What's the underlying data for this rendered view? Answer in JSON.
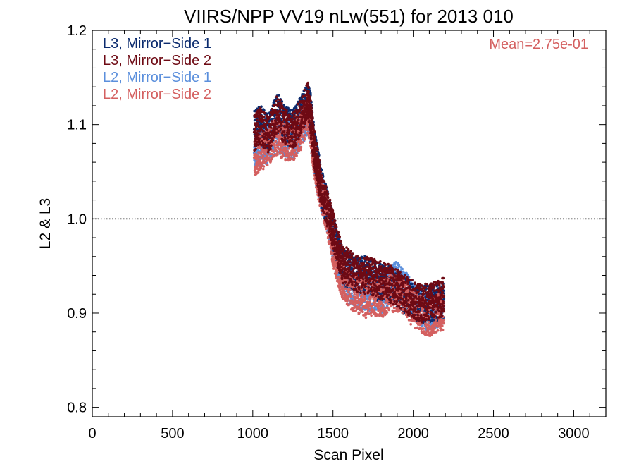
{
  "chart_data": {
    "type": "scatter",
    "title": "VIIRS/NPP VV19 nLw(551) for 2013 010",
    "xlabel": "Scan Pixel",
    "ylabel": "L2 & L3",
    "xlim": [
      0,
      3200
    ],
    "ylim": [
      0.79,
      1.2
    ],
    "xticks": [
      0,
      500,
      1000,
      1500,
      2000,
      2500,
      3000
    ],
    "yticks": [
      0.8,
      0.9,
      1.0,
      1.1,
      1.2
    ],
    "ytick_labels": [
      "0.8",
      "0.9",
      "1.0",
      "1.1",
      "1.2"
    ],
    "reference_line": 1.0,
    "annotation": "Mean=2.75e-01",
    "grid": false,
    "legend_position": "top-left",
    "series": [
      {
        "name": "L3, Mirror−Side 1",
        "color": "#0b2b6e",
        "x": [
          1010,
          1050,
          1100,
          1150,
          1200,
          1250,
          1300,
          1340,
          1360,
          1380,
          1400,
          1420,
          1450,
          1480,
          1500,
          1530,
          1560,
          1600,
          1650,
          1700,
          1750,
          1800,
          1850,
          1900,
          1950,
          2000,
          2050,
          2100,
          2150,
          2190
        ],
        "y": [
          1.095,
          1.1,
          1.09,
          1.115,
          1.1,
          1.095,
          1.11,
          1.125,
          1.115,
          1.08,
          1.06,
          1.04,
          1.02,
          1.0,
          0.985,
          0.965,
          0.95,
          0.945,
          0.94,
          0.942,
          0.935,
          0.932,
          0.93,
          0.925,
          0.918,
          0.912,
          0.908,
          0.91,
          0.912,
          0.915
        ]
      },
      {
        "name": "L3, Mirror−Side 2",
        "color": "#6e0a14",
        "x": [
          1010,
          1050,
          1100,
          1150,
          1200,
          1250,
          1300,
          1340,
          1360,
          1380,
          1400,
          1420,
          1450,
          1480,
          1500,
          1530,
          1560,
          1600,
          1650,
          1700,
          1750,
          1800,
          1850,
          1900,
          1950,
          2000,
          2050,
          2100,
          2150,
          2190
        ],
        "y": [
          1.092,
          1.098,
          1.088,
          1.112,
          1.098,
          1.092,
          1.108,
          1.128,
          1.11,
          1.078,
          1.058,
          1.038,
          1.018,
          1.002,
          0.988,
          0.968,
          0.952,
          0.948,
          0.942,
          0.94,
          0.938,
          0.935,
          0.932,
          0.926,
          0.92,
          0.915,
          0.91,
          0.912,
          0.914,
          0.918
        ]
      },
      {
        "name": "L2, Mirror−Side 1",
        "color": "#5b8fdc",
        "x": [
          1010,
          1050,
          1100,
          1150,
          1200,
          1250,
          1300,
          1340,
          1360,
          1380,
          1400,
          1420,
          1450,
          1480,
          1500,
          1530,
          1560,
          1600,
          1650,
          1700,
          1750,
          1800,
          1850,
          1900,
          1950,
          2000,
          2050,
          2100,
          2150,
          2190
        ],
        "y": [
          1.07,
          1.075,
          1.08,
          1.09,
          1.085,
          1.082,
          1.095,
          1.11,
          1.1,
          1.07,
          1.05,
          1.035,
          1.015,
          0.995,
          0.975,
          0.955,
          0.94,
          0.93,
          0.925,
          0.92,
          0.925,
          0.92,
          0.93,
          0.935,
          0.925,
          0.915,
          0.905,
          0.9,
          0.905,
          0.908
        ]
      },
      {
        "name": "L2, Mirror−Side 2",
        "color": "#d46060",
        "x": [
          1010,
          1050,
          1100,
          1150,
          1200,
          1250,
          1300,
          1340,
          1360,
          1380,
          1400,
          1420,
          1450,
          1480,
          1500,
          1530,
          1560,
          1600,
          1650,
          1700,
          1750,
          1800,
          1850,
          1900,
          1950,
          2000,
          2050,
          2100,
          2150,
          2190
        ],
        "y": [
          1.065,
          1.07,
          1.078,
          1.088,
          1.082,
          1.08,
          1.092,
          1.112,
          1.098,
          1.068,
          1.048,
          1.032,
          1.012,
          0.99,
          0.97,
          0.95,
          0.935,
          0.925,
          0.92,
          0.915,
          0.918,
          0.915,
          0.92,
          0.922,
          0.915,
          0.905,
          0.898,
          0.895,
          0.9,
          0.902
        ]
      }
    ]
  }
}
